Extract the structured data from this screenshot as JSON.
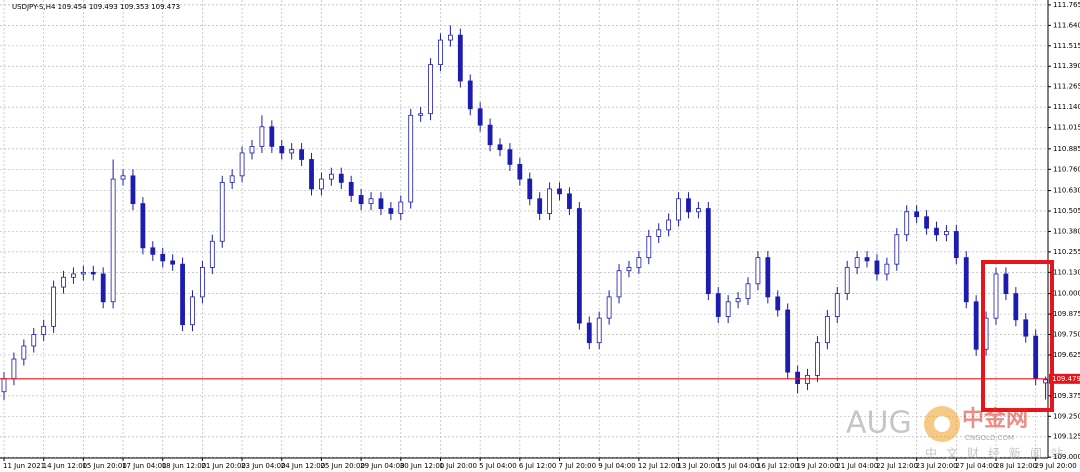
{
  "chart_data": {
    "type": "candlestick",
    "title": "USDJPY-S,H4 109.454 109.493 109.353 109.473",
    "categories": [
      "11 Jun 2021",
      null,
      null,
      null,
      "14 Jun 12:00",
      null,
      null,
      null,
      "15 Jun 20:00",
      null,
      null,
      null,
      "17 Jun 04:00",
      null,
      null,
      null,
      "18 Jun 12:00",
      null,
      null,
      null,
      "21 Jun 20:00",
      null,
      null,
      null,
      "23 Jun 04:00",
      null,
      null,
      null,
      "24 Jun 12:00",
      null,
      null,
      null,
      "25 Jun 20:00",
      null,
      null,
      null,
      "29 Jun 04:00",
      null,
      null,
      null,
      "30 Jun 12:00",
      null,
      null,
      null,
      "1 Jul 20:00",
      null,
      null,
      null,
      "5 Jul 04:00",
      null,
      null,
      null,
      "6 Jul 12:00",
      null,
      null,
      null,
      "7 Jul 20:00",
      null,
      null,
      null,
      "9 Jul 04:00",
      null,
      null,
      null,
      "12 Jul 12:00",
      null,
      null,
      null,
      "13 Jul 20:00",
      null,
      null,
      null,
      "15 Jul 04:00",
      null,
      null,
      null,
      "16 Jul 12:00",
      null,
      null,
      null,
      "19 Jul 20:00",
      null,
      null,
      null,
      "21 Jul 04:00",
      null,
      null,
      null,
      "22 Jul 12:00",
      null,
      null,
      null,
      "23 Jul 20:00",
      null,
      null,
      null,
      "27 Jul 04:00",
      null,
      null,
      null,
      "28 Jul 12:00",
      null,
      null,
      null,
      "29 Jul 20:00",
      null
    ],
    "open": [
      109.4,
      109.48,
      109.6,
      109.68,
      109.75,
      109.8,
      110.04,
      110.1,
      110.12,
      110.13,
      110.12,
      109.95,
      110.7,
      110.72,
      110.55,
      110.28,
      110.24,
      110.2,
      110.18,
      109.81,
      109.98,
      110.16,
      110.32,
      110.68,
      110.72,
      110.86,
      110.9,
      111.02,
      110.9,
      110.86,
      110.88,
      110.82,
      110.64,
      110.7,
      110.73,
      110.68,
      110.6,
      110.55,
      110.58,
      110.52,
      110.49,
      110.56,
      111.09,
      111.1,
      111.4,
      111.55,
      111.58,
      111.3,
      111.13,
      111.03,
      110.91,
      110.88,
      110.79,
      110.7,
      110.58,
      110.49,
      110.64,
      110.61,
      110.52,
      109.82,
      109.7,
      109.85,
      109.98,
      110.14,
      110.16,
      110.22,
      110.35,
      110.39,
      110.45,
      110.58,
      110.5,
      110.52,
      110.0,
      109.86,
      109.95,
      109.97,
      110.06,
      110.22,
      109.98,
      109.9,
      109.52,
      109.45,
      109.5,
      109.7,
      109.86,
      110.0,
      110.16,
      110.22,
      110.2,
      110.12,
      110.18,
      110.36,
      110.5,
      110.47,
      110.4,
      110.36,
      110.38,
      110.22,
      109.95,
      109.66,
      109.85,
      110.12,
      110.0,
      109.84,
      109.74,
      109.454
    ],
    "high": [
      109.52,
      109.64,
      109.72,
      109.79,
      109.84,
      110.08,
      110.14,
      110.16,
      110.17,
      110.17,
      110.16,
      110.82,
      110.76,
      110.76,
      110.59,
      110.32,
      110.28,
      110.24,
      110.22,
      110.02,
      110.2,
      110.36,
      110.72,
      110.76,
      110.9,
      110.94,
      111.09,
      111.06,
      110.94,
      110.92,
      110.92,
      110.86,
      110.74,
      110.77,
      110.77,
      110.72,
      110.64,
      110.62,
      110.62,
      110.56,
      110.6,
      111.13,
      111.14,
      111.44,
      111.59,
      111.64,
      111.62,
      111.34,
      111.17,
      111.07,
      110.95,
      110.92,
      110.83,
      110.74,
      110.62,
      110.68,
      110.68,
      110.65,
      110.56,
      109.86,
      109.89,
      110.02,
      110.18,
      110.2,
      110.26,
      110.39,
      110.43,
      110.49,
      110.62,
      110.62,
      110.56,
      110.56,
      110.04,
      109.99,
      110.01,
      110.1,
      110.26,
      110.26,
      110.02,
      109.94,
      109.56,
      109.54,
      109.74,
      109.9,
      110.04,
      110.2,
      110.26,
      110.26,
      110.24,
      110.22,
      110.4,
      110.54,
      110.54,
      110.51,
      110.44,
      110.42,
      110.42,
      110.26,
      109.99,
      109.89,
      110.16,
      110.16,
      110.04,
      109.88,
      109.78,
      109.493
    ],
    "low": [
      109.35,
      109.44,
      109.56,
      109.64,
      109.71,
      109.76,
      110.0,
      110.06,
      110.08,
      110.08,
      109.91,
      109.91,
      110.66,
      110.51,
      110.24,
      110.2,
      110.16,
      110.14,
      109.77,
      109.77,
      109.94,
      110.12,
      110.28,
      110.64,
      110.68,
      110.82,
      110.86,
      110.86,
      110.82,
      110.82,
      110.78,
      110.6,
      110.6,
      110.66,
      110.64,
      110.56,
      110.51,
      110.51,
      110.48,
      110.45,
      110.45,
      110.52,
      111.05,
      111.06,
      111.36,
      111.51,
      111.26,
      111.09,
      110.99,
      110.87,
      110.84,
      110.75,
      110.66,
      110.54,
      110.45,
      110.45,
      110.57,
      110.48,
      109.78,
      109.66,
      109.66,
      109.81,
      109.94,
      110.1,
      110.12,
      110.18,
      110.31,
      110.35,
      110.41,
      110.46,
      110.46,
      109.96,
      109.82,
      109.82,
      109.91,
      109.93,
      110.02,
      109.94,
      109.86,
      109.48,
      109.39,
      109.41,
      109.46,
      109.66,
      109.82,
      109.96,
      110.12,
      110.16,
      110.08,
      110.08,
      110.14,
      110.32,
      110.43,
      110.36,
      110.32,
      110.32,
      110.18,
      109.91,
      109.62,
      109.62,
      109.81,
      109.96,
      109.8,
      109.7,
      109.44,
      109.353
    ],
    "close": [
      109.48,
      109.6,
      109.68,
      109.75,
      109.8,
      110.04,
      110.1,
      110.12,
      110.13,
      110.12,
      109.95,
      110.7,
      110.72,
      110.55,
      110.28,
      110.24,
      110.2,
      110.18,
      109.81,
      109.98,
      110.16,
      110.32,
      110.68,
      110.72,
      110.86,
      110.9,
      111.02,
      110.9,
      110.86,
      110.88,
      110.82,
      110.64,
      110.7,
      110.73,
      110.68,
      110.6,
      110.55,
      110.58,
      110.52,
      110.49,
      110.56,
      111.09,
      111.1,
      111.4,
      111.55,
      111.58,
      111.3,
      111.13,
      111.03,
      110.91,
      110.88,
      110.79,
      110.7,
      110.58,
      110.49,
      110.64,
      110.61,
      110.52,
      109.82,
      109.7,
      109.85,
      109.98,
      110.14,
      110.16,
      110.22,
      110.35,
      110.39,
      110.45,
      110.58,
      110.5,
      110.52,
      110.0,
      109.86,
      109.95,
      109.97,
      110.06,
      110.22,
      109.98,
      109.9,
      109.52,
      109.45,
      109.5,
      109.7,
      109.86,
      110.0,
      110.16,
      110.22,
      110.2,
      110.12,
      110.18,
      110.36,
      110.5,
      110.47,
      110.4,
      110.36,
      110.38,
      110.22,
      109.95,
      109.66,
      109.85,
      110.12,
      110.0,
      109.84,
      109.74,
      109.48,
      109.473
    ],
    "color": "#1c1cb0",
    "ylim": [
      108.995,
      111.795
    ],
    "yticks": [
      111.765,
      {
        "value": 111.64,
        "label": "111.640"
      },
      111.515,
      {
        "value": 111.39,
        "label": "111.390"
      },
      111.265,
      {
        "value": 111.14,
        "label": "111.140"
      },
      111.015,
      110.885,
      {
        "value": 110.76,
        "label": "110.760"
      },
      {
        "value": 110.63,
        "label": "110.630"
      },
      110.505,
      {
        "value": 110.38,
        "label": "110.380"
      },
      110.255,
      {
        "value": 110.13,
        "label": "110.130"
      },
      {
        "value": 110,
        "label": "110.000"
      },
      109.875,
      {
        "value": 109.75,
        "label": "109.750"
      },
      109.625,
      109.375,
      {
        "value": 109.25,
        "label": "109.250"
      },
      109.125,
      {
        "value": 109,
        "label": "109.000"
      }
    ],
    "grid": true,
    "price_line": 109.479,
    "price_line_color": "#e8141c",
    "watermark": "AUG",
    "brand": "中金网",
    "brand_url": "CNGOLD.COM",
    "tagline": "中文财经新闻站"
  }
}
